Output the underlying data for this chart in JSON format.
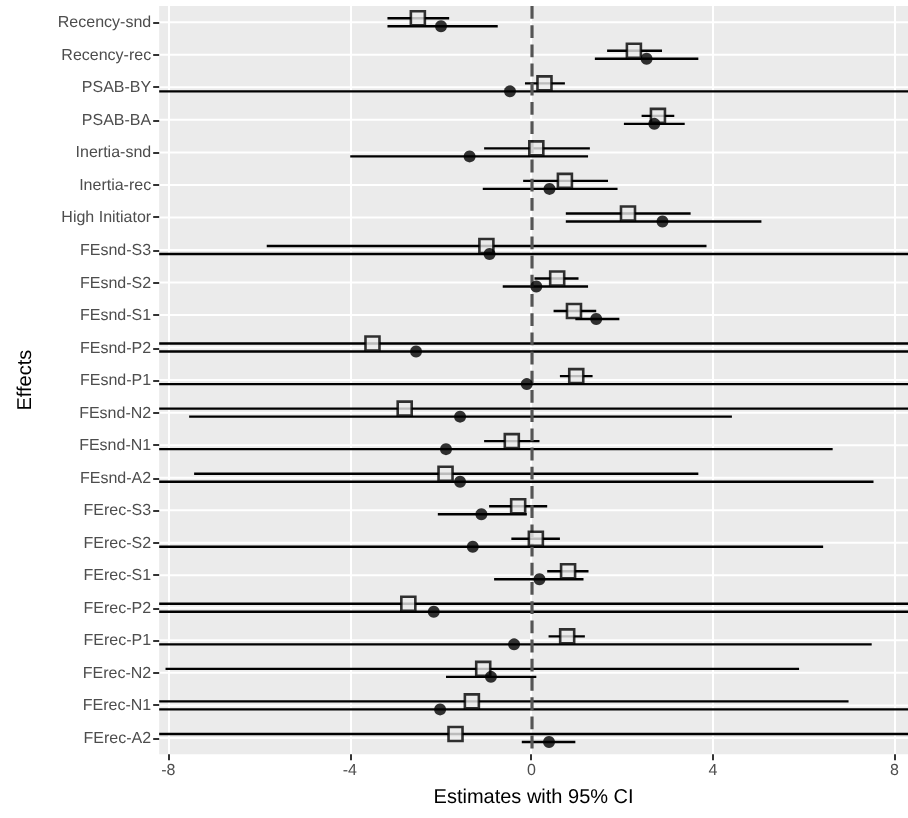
{
  "chart_data": {
    "type": "scatter",
    "xlabel": "Estimates with 95% CI",
    "ylabel": "Effects",
    "categories": [
      "Recency-snd",
      "Recency-rec",
      "PSAB-BY",
      "PSAB-BA",
      "Inertia-snd",
      "Inertia-rec",
      "High Initiator",
      "FEsnd-S3",
      "FEsnd-S2",
      "FEsnd-S1",
      "FEsnd-P2",
      "FEsnd-P1",
      "FEsnd-N2",
      "FEsnd-N1",
      "FEsnd-A2",
      "FErec-S3",
      "FErec-S2",
      "FErec-S1",
      "FErec-P2",
      "FErec-P1",
      "FErec-N2",
      "FErec-N1",
      "FErec-A2"
    ],
    "series": [
      {
        "color": "#000000",
        "marker": "square",
        "values": [
          -2.5,
          2.26,
          0.29,
          2.79,
          0.11,
          0.74,
          2.13,
          -0.99,
          0.57,
          0.94,
          -3.5,
          0.99,
          -2.79,
          -0.43,
          -1.89,
          -0.29,
          0.1,
          0.81,
          -2.71,
          0.79,
          -1.06,
          -1.31,
          -1.67
        ],
        "errors": [
          [
            -3.17,
            -1.81
          ],
          [
            1.67,
            2.88
          ],
          [
            -0.14,
            0.74
          ],
          [
            2.43,
            3.15
          ],
          [
            -1.04,
            1.29
          ],
          [
            -0.18,
            1.69
          ],
          [
            0.76,
            3.51
          ],
          [
            -5.83,
            3.86
          ],
          [
            0.07,
            1.04
          ],
          [
            0.49,
            1.43
          ],
          [
            -8.2,
            8.3
          ],
          [
            0.63,
            1.35
          ],
          [
            -8.2,
            8.3
          ],
          [
            -1.04,
            0.18
          ],
          [
            -7.43,
            3.68
          ],
          [
            -0.93,
            0.35
          ],
          [
            -0.44,
            0.63
          ],
          [
            0.35,
            1.26
          ],
          [
            -8.2,
            8.3
          ],
          [
            0.38,
            1.18
          ],
          [
            -8.06,
            5.9
          ],
          [
            -8.2,
            6.99
          ],
          [
            -8.2,
            8.3
          ]
        ]
      },
      {
        "color": "#000000",
        "marker": "circle",
        "values": [
          -1.99,
          2.54,
          -0.47,
          2.71,
          -1.36,
          0.4,
          2.89,
          -0.92,
          0.11,
          1.43,
          -2.54,
          -0.1,
          -1.57,
          -1.88,
          -1.57,
          -1.1,
          -1.29,
          0.18,
          -2.15,
          -0.38,
          -0.89,
          -2.01,
          0.39
        ],
        "errors": [
          [
            -3.17,
            -0.74
          ],
          [
            1.4,
            3.68
          ],
          [
            -8.2,
            8.3
          ],
          [
            2.04,
            3.38
          ],
          [
            -3.99,
            1.25
          ],
          [
            -1.07,
            1.9
          ],
          [
            0.76,
            5.07
          ],
          [
            -8.2,
            8.3
          ],
          [
            -0.63,
            1.25
          ],
          [
            0.97,
            1.94
          ],
          [
            -8.2,
            8.3
          ],
          [
            -8.2,
            8.3
          ],
          [
            -7.54,
            4.42
          ],
          [
            -8.2,
            6.64
          ],
          [
            -8.2,
            7.54
          ],
          [
            -2.06,
            -0.1
          ],
          [
            -8.2,
            6.43
          ],
          [
            -0.82,
            1.15
          ],
          [
            -8.2,
            8.3
          ],
          [
            -8.2,
            7.5
          ],
          [
            -1.88,
            0.11
          ],
          [
            -8.2,
            8.3
          ],
          [
            -0.21,
            0.97
          ]
        ]
      }
    ],
    "xlim": [
      -8.2,
      8.3
    ],
    "xticks": [
      -8,
      -4,
      0,
      4,
      8
    ],
    "ref_lines": [
      {
        "axis": "x",
        "value": 0,
        "line_style": "dashed",
        "color": "#555555"
      }
    ],
    "grid": true,
    "orientation": "horizontal"
  }
}
